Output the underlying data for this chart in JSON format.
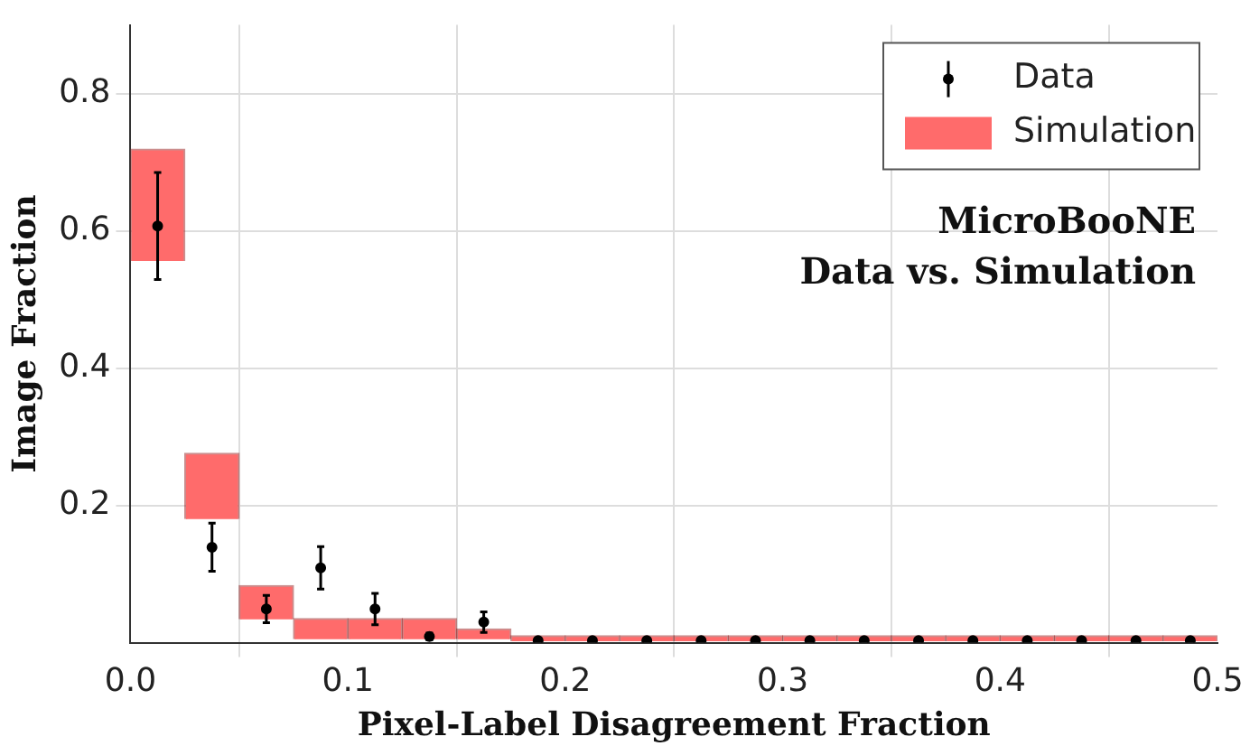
{
  "chart_data": {
    "type": "bar",
    "xlabel": "Pixel-Label Disagreement Fraction",
    "ylabel": "Image Fraction",
    "annotations": [
      "MicroBooNE",
      "Data vs. Simulation"
    ],
    "xlim": [
      0,
      0.5
    ],
    "xticks": [
      {
        "value": 0,
        "label": "0.0"
      },
      {
        "value": 0.1,
        "label": "0.1"
      },
      {
        "value": 0.2,
        "label": "0.2"
      },
      {
        "value": 0.3,
        "label": "0.3"
      },
      {
        "value": 0.4,
        "label": "0.4"
      },
      {
        "value": 0.5,
        "label": "0.5"
      }
    ],
    "ylim": [
      0,
      0.9
    ],
    "yticks": [
      {
        "value": 0.2,
        "label": "0.2"
      },
      {
        "value": 0.4,
        "label": "0.4"
      },
      {
        "value": 0.6,
        "label": "0.6"
      },
      {
        "value": 0.8,
        "label": "0.8"
      }
    ],
    "grid": true,
    "legend": "top right",
    "marker": "circle",
    "series": [
      {
        "name": "Data",
        "type": "scatter",
        "color": "#000000",
        "x": [
          0.0125,
          0.0375,
          0.0625,
          0.0875,
          0.1125,
          0.1375,
          0.1625,
          0.1875,
          0.2125,
          0.2375,
          0.2625,
          0.2875,
          0.3125,
          0.3375,
          0.3625,
          0.3875,
          0.4125,
          0.4375,
          0.4625,
          0.4875
        ],
        "values": [
          0.607,
          0.139,
          0.049,
          0.109,
          0.049,
          0.009,
          0.03,
          0.003,
          0.003,
          0.003,
          0.003,
          0.003,
          0.003,
          0.003,
          0.003,
          0.003,
          0.003,
          0.003,
          0.003,
          0.003
        ],
        "errors": [
          0.078,
          0.035,
          0.02,
          0.031,
          0.023,
          0.005,
          0.015,
          null,
          null,
          null,
          null,
          null,
          null,
          null,
          null,
          null,
          null,
          null,
          null,
          null
        ]
      },
      {
        "name": "Simulation",
        "color": "#ff6b6b",
        "x": [
          0.0125,
          0.0375,
          0.0625,
          0.0875,
          0.1125,
          0.1375,
          0.1625,
          0.1875,
          0.2125,
          0.2375,
          0.2625,
          0.2875,
          0.3125,
          0.3375,
          0.3625,
          0.3875,
          0.4125,
          0.4375,
          0.4625,
          0.4875
        ],
        "base": [
          0.556,
          0.18,
          0.034,
          0.005,
          0.005,
          0.005,
          0.005,
          0.002,
          0.002,
          0.002,
          0.002,
          0.002,
          0.002,
          0.002,
          0.002,
          0.002,
          0.002,
          0.002,
          0.002,
          0.002
        ],
        "values": [
          0.163,
          0.096,
          0.049,
          0.03,
          0.03,
          0.03,
          0.015,
          0.008,
          0.008,
          0.008,
          0.008,
          0.008,
          0.008,
          0.008,
          0.008,
          0.008,
          0.008,
          0.008,
          0.008,
          0.008
        ]
      }
    ]
  }
}
